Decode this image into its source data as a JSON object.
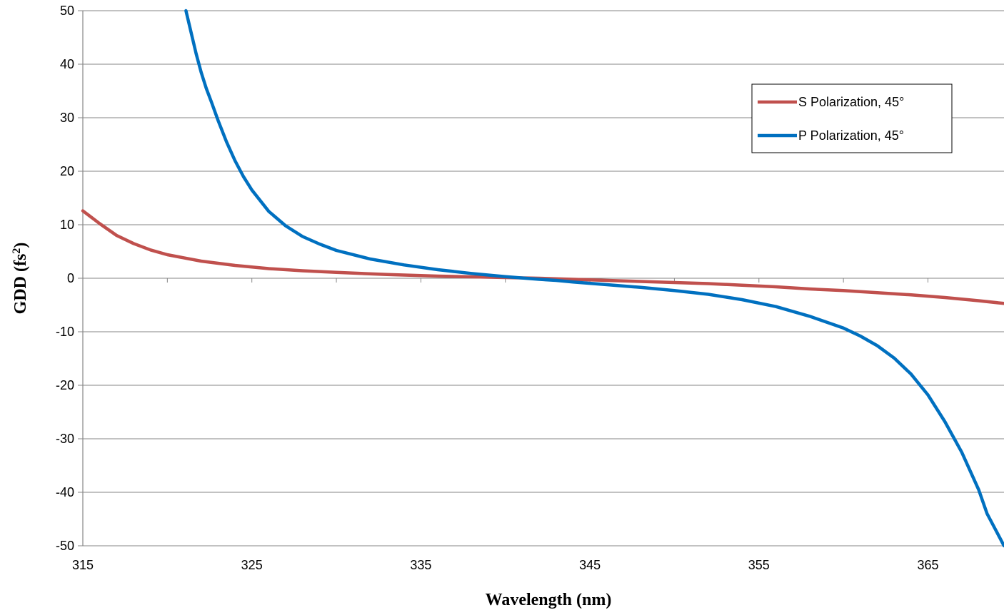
{
  "chart_data": {
    "type": "line",
    "title": "",
    "xlabel": "Wavelength (nm)",
    "ylabel": {
      "base": "GDD (fs",
      "sup": "2",
      "end": ")"
    },
    "xlim": [
      315,
      369.5
    ],
    "ylim": [
      -50,
      50
    ],
    "x_ticks": [
      315,
      325,
      335,
      345,
      355,
      365
    ],
    "y_ticks": [
      50,
      40,
      30,
      20,
      10,
      0,
      -10,
      -20,
      -30,
      -40,
      -50
    ],
    "grid": "horizontal",
    "legend_position": "top-right",
    "series": [
      {
        "name": "S Polarization, 45°",
        "color": "#c0504d",
        "x": [
          315,
          316,
          317,
          318,
          319,
          320,
          322,
          324,
          326,
          328,
          330,
          333,
          336,
          339,
          342,
          344,
          346,
          348,
          350,
          352,
          354,
          356,
          358,
          360,
          362,
          364,
          366,
          368,
          369.5
        ],
        "y": [
          12.6,
          10.2,
          8.0,
          6.5,
          5.3,
          4.4,
          3.2,
          2.4,
          1.8,
          1.4,
          1.1,
          0.7,
          0.4,
          0.2,
          0.0,
          -0.2,
          -0.4,
          -0.6,
          -0.8,
          -1.0,
          -1.3,
          -1.6,
          -2.0,
          -2.3,
          -2.7,
          -3.1,
          -3.6,
          -4.2,
          -4.7
        ]
      },
      {
        "name": "P Polarization, 45°",
        "color": "#0070c0",
        "x": [
          321.1,
          321.4,
          321.7,
          322.0,
          322.3,
          322.6,
          323.0,
          323.5,
          324.0,
          324.5,
          325.0,
          326.0,
          327.0,
          328.0,
          329.0,
          330.0,
          332.0,
          334.0,
          336.0,
          338.0,
          340.0,
          342.0,
          343.0,
          344.0,
          346.0,
          348.0,
          350.0,
          352.0,
          354.0,
          356.0,
          358.0,
          360.0,
          361.0,
          362.0,
          363.0,
          364.0,
          365.0,
          366.0,
          367.0,
          368.0,
          368.5,
          369.0,
          369.5
        ],
        "y": [
          50,
          46,
          42,
          38.5,
          35.5,
          33,
          29.5,
          25.5,
          22,
          19,
          16.5,
          12.5,
          9.8,
          7.8,
          6.4,
          5.2,
          3.6,
          2.5,
          1.6,
          0.9,
          0.3,
          -0.2,
          -0.4,
          -0.7,
          -1.2,
          -1.7,
          -2.3,
          -3.0,
          -4.0,
          -5.3,
          -7.1,
          -9.3,
          -10.8,
          -12.6,
          -14.9,
          -17.9,
          -21.8,
          -26.8,
          -32.5,
          -39.5,
          -44.0,
          -47.0,
          -50.0
        ]
      }
    ]
  }
}
